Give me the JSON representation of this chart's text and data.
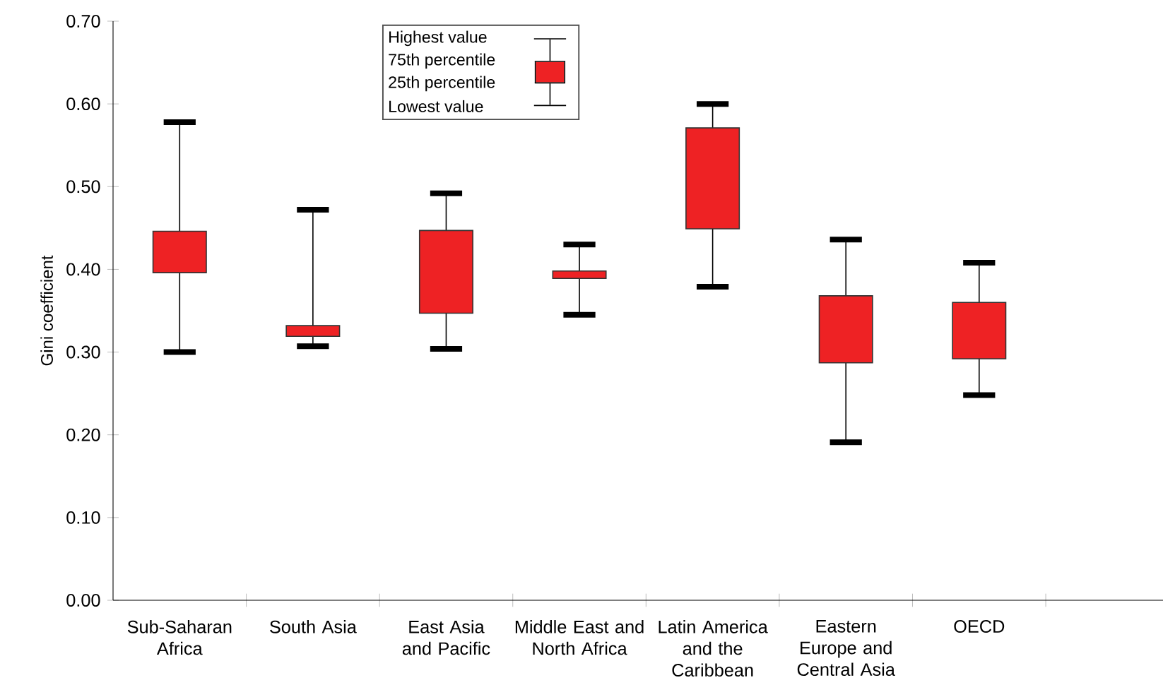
{
  "chart_data": {
    "type": "box",
    "ylabel": "Gini coefficient",
    "categories": [
      "Sub-Saharan Africa",
      "South Asia",
      "East Asia and Pacific",
      "Middle East and North Africa",
      "Latin America and the Caribbean",
      "Eastern Europe and Central Asia",
      "OECD"
    ],
    "boxes": [
      {
        "low": 0.3,
        "q1": 0.396,
        "q3": 0.446,
        "high": 0.578
      },
      {
        "low": 0.307,
        "q1": 0.319,
        "q3": 0.332,
        "high": 0.472
      },
      {
        "low": 0.304,
        "q1": 0.347,
        "q3": 0.447,
        "high": 0.492
      },
      {
        "low": 0.345,
        "q1": 0.389,
        "q3": 0.398,
        "high": 0.43
      },
      {
        "low": 0.379,
        "q1": 0.449,
        "q3": 0.571,
        "high": 0.6
      },
      {
        "low": 0.191,
        "q1": 0.287,
        "q3": 0.368,
        "high": 0.436
      },
      {
        "low": 0.248,
        "q1": 0.292,
        "q3": 0.36,
        "high": 0.408
      }
    ],
    "color": "#ee2224",
    "ylim": [
      0,
      0.7
    ],
    "yticks": [
      {
        "value": 0,
        "label": "0.00"
      },
      {
        "value": 0.1,
        "label": "0.10"
      },
      {
        "value": 0.2,
        "label": "0.20"
      },
      {
        "value": 0.3,
        "label": "0.30"
      },
      {
        "value": 0.4,
        "label": "0.40"
      },
      {
        "value": 0.5,
        "label": "0.50"
      },
      {
        "value": 0.6,
        "label": "0.60"
      },
      {
        "value": 0.7,
        "label": "0.70"
      }
    ],
    "annotations": [
      "Highest value",
      "75th percentile",
      "25th percentile",
      "Lowest value"
    ]
  }
}
